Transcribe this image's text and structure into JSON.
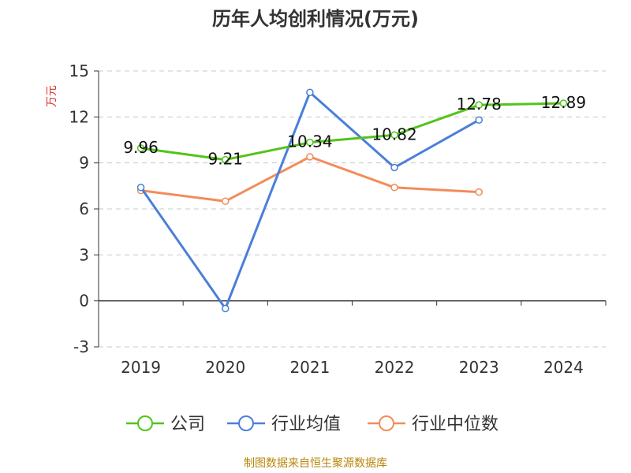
{
  "chart_data": {
    "type": "line",
    "title": "历年人均创利情况(万元)",
    "ylabel": "万元",
    "xlabel": "",
    "categories": [
      "2019",
      "2020",
      "2021",
      "2022",
      "2023",
      "2024"
    ],
    "ylim": [
      -3,
      15
    ],
    "yticks": [
      15,
      12,
      9,
      6,
      3,
      0,
      -3
    ],
    "grid": true,
    "legend_position": "bottom",
    "series": [
      {
        "name": "公司",
        "color": "#52c41a",
        "values": [
          9.96,
          9.21,
          10.34,
          10.82,
          12.78,
          12.89
        ],
        "labels": [
          "9.96",
          "9.21",
          "10.34",
          "10.82",
          "12.78",
          "12.89"
        ]
      },
      {
        "name": "行业均值",
        "color": "#4a7fd9",
        "values": [
          7.4,
          -0.5,
          13.6,
          8.7,
          11.8,
          null
        ]
      },
      {
        "name": "行业中位数",
        "color": "#f28c5a",
        "values": [
          7.2,
          6.5,
          9.4,
          7.4,
          7.1,
          null
        ]
      }
    ]
  },
  "source": "制图数据来自恒生聚源数据库"
}
